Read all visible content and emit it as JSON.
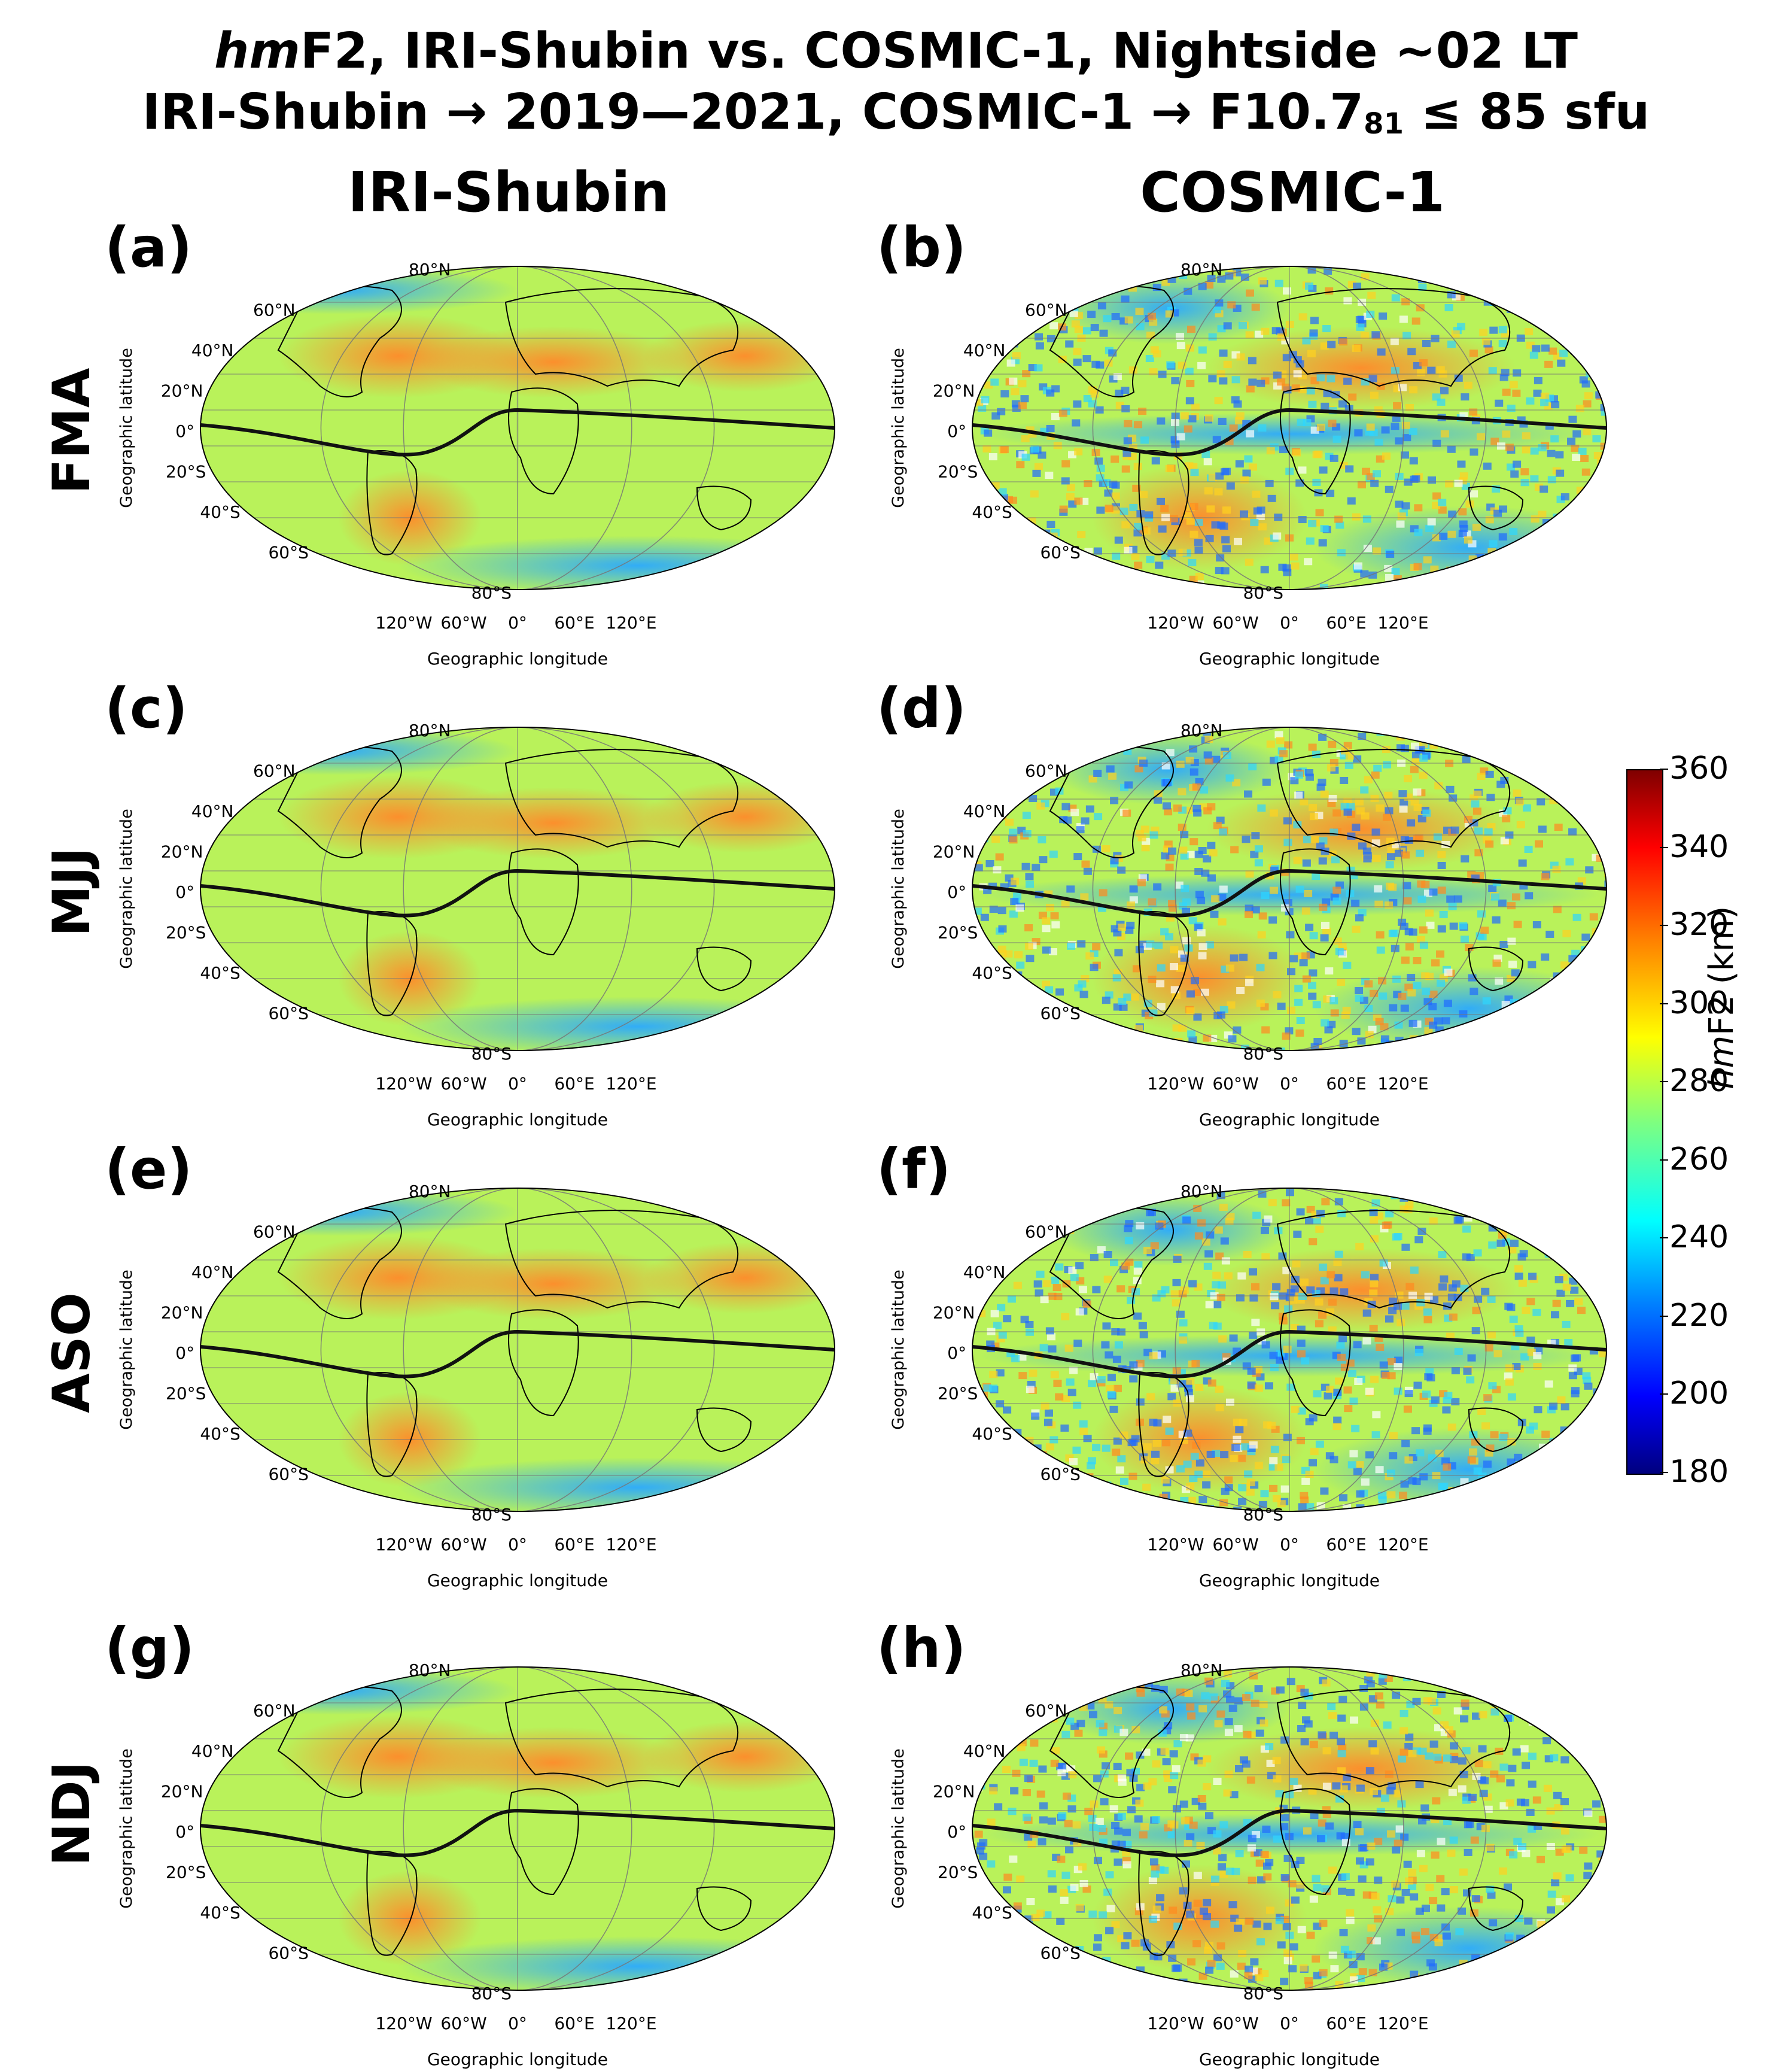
{
  "title": {
    "line1_italic": "hm",
    "line1_rest": "F2, IRI-Shubin vs. COSMIC-1, Nightside ~02 LT",
    "line2_a": "IRI-Shubin → 2019—2021,  COSMIC-1 → F10.7",
    "line2_sub": "81",
    "line2_b": " ≤ 85 sfu"
  },
  "columns": [
    "IRI-Shubin",
    "COSMIC-1"
  ],
  "rows": [
    "FMA",
    "MJJ",
    "ASO",
    "NDJ"
  ],
  "panel_labels": [
    "(a)",
    "(b)",
    "(c)",
    "(d)",
    "(e)",
    "(f)",
    "(g)",
    "(h)"
  ],
  "axes": {
    "ylabel": "Geographic latitude",
    "xlabel": "Geographic longitude",
    "lat_ticks": [
      "80°N",
      "60°N",
      "40°N",
      "20°N",
      "0°",
      "20°S",
      "40°S",
      "60°S",
      "80°S"
    ],
    "lon_ticks": [
      "120°W",
      "60°W",
      "0°",
      "60°E",
      "120°E"
    ]
  },
  "colorbar": {
    "label_italic": "hm",
    "label_rest": "F2 (km)",
    "min": 180,
    "max": 360,
    "ticks": [
      "360",
      "340",
      "320",
      "300",
      "280",
      "260",
      "240",
      "220",
      "200",
      "180"
    ]
  },
  "colors": {
    "background_field": "#b9f25a",
    "high": "#ff8a2a",
    "low": "#2aa9ff",
    "equator_line": "#111111"
  },
  "chart_data": {
    "type": "heatmap",
    "projection": "Robinson (global map)",
    "quantity": "hmF2 (km)",
    "value_range": [
      180,
      360
    ],
    "panels": [
      {
        "label": "(a)",
        "model": "IRI-Shubin",
        "season": "FMA",
        "typical_range_km": [
          240,
          320
        ]
      },
      {
        "label": "(b)",
        "model": "COSMIC-1",
        "season": "FMA",
        "typical_range_km": [
          200,
          320
        ]
      },
      {
        "label": "(c)",
        "model": "IRI-Shubin",
        "season": "MJJ",
        "typical_range_km": [
          240,
          330
        ]
      },
      {
        "label": "(d)",
        "model": "COSMIC-1",
        "season": "MJJ",
        "typical_range_km": [
          190,
          340
        ]
      },
      {
        "label": "(e)",
        "model": "IRI-Shubin",
        "season": "ASO",
        "typical_range_km": [
          240,
          320
        ]
      },
      {
        "label": "(f)",
        "model": "COSMIC-1",
        "season": "ASO",
        "typical_range_km": [
          200,
          320
        ]
      },
      {
        "label": "(g)",
        "model": "IRI-Shubin",
        "season": "NDJ",
        "typical_range_km": [
          230,
          320
        ]
      },
      {
        "label": "(h)",
        "model": "COSMIC-1",
        "season": "NDJ",
        "typical_range_km": [
          190,
          320
        ]
      }
    ],
    "overlay": "magnetic equator (black curve)"
  }
}
